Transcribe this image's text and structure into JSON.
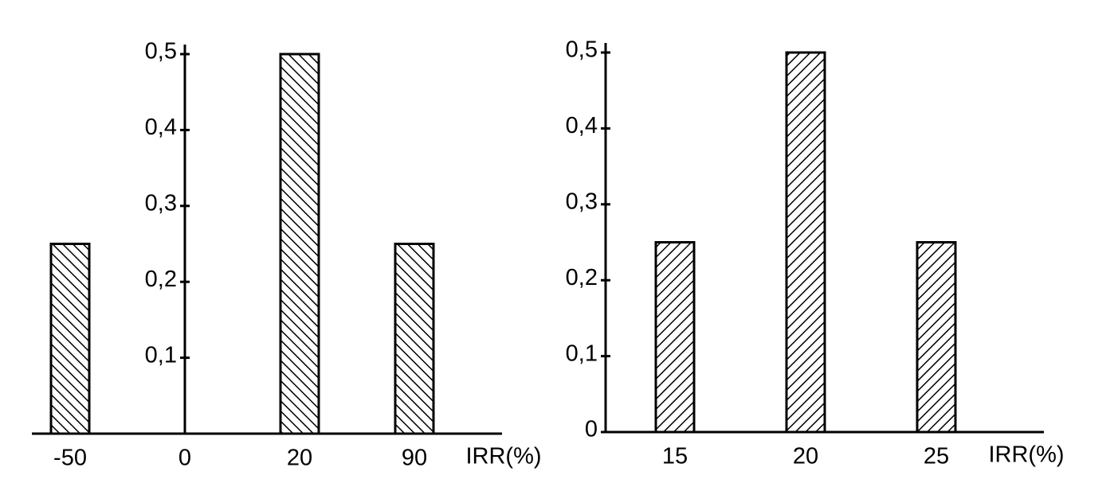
{
  "chart_data": [
    {
      "type": "bar",
      "x_label": "IRR(%)",
      "categories": [
        "-50",
        "0",
        "20",
        "90"
      ],
      "values": [
        0.25,
        null,
        0.5,
        0.25
      ],
      "color": "#000",
      "hatch": "back",
      "ylim": [
        0,
        0.5
      ],
      "yticks": [
        {
          "value": 0.1,
          "label": "0,1"
        },
        {
          "value": 0.2,
          "label": "0,2"
        },
        {
          "value": 0.3,
          "label": "0,3"
        },
        {
          "value": 0.4,
          "label": "0,4"
        },
        {
          "value": 0.5,
          "label": "0,5"
        }
      ]
    },
    {
      "type": "bar",
      "x_label": "IRR(%)",
      "categories": [
        "15",
        "20",
        "25"
      ],
      "values": [
        0.25,
        0.5,
        0.25
      ],
      "color": "#000",
      "hatch": "forward",
      "ylim": [
        0,
        0.5
      ],
      "yticks": [
        0,
        {
          "value": 0.1,
          "label": "0,1"
        },
        {
          "value": 0.2,
          "label": "0,2"
        },
        {
          "value": 0.3,
          "label": "0,3"
        },
        {
          "value": 0.4,
          "label": "0,4"
        },
        {
          "value": 0.5,
          "label": "0,5"
        }
      ]
    }
  ]
}
